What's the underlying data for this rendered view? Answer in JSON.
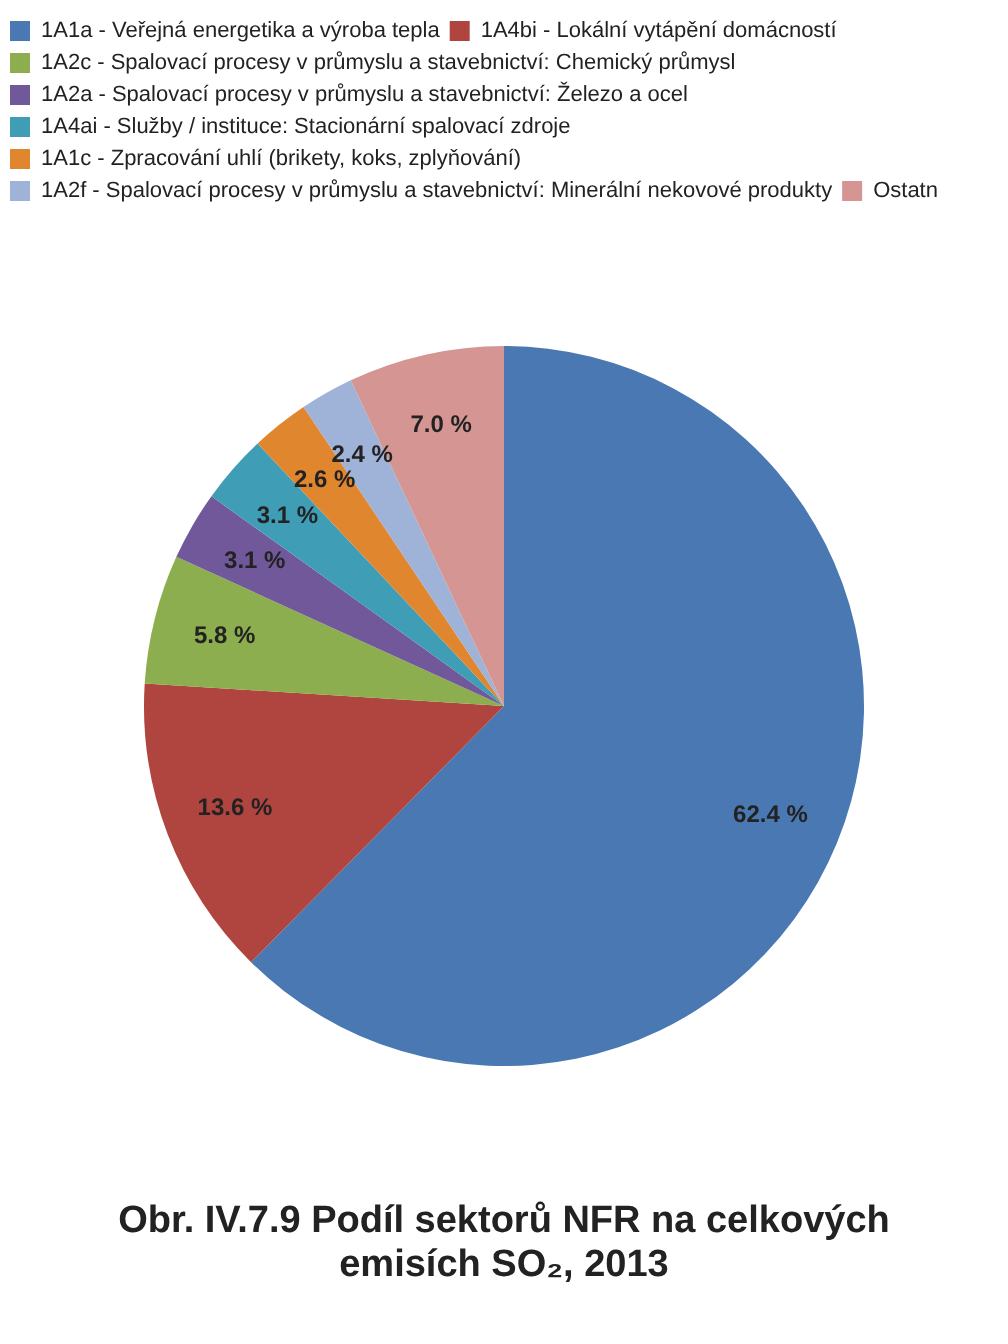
{
  "chart_data": {
    "type": "pie",
    "title": "Obr. IV.7.9  Podíl sektorů NFR na celkových emisích SO₂, 2013",
    "categories": [
      "1A1a - Veřejná energetika a výroba tepla",
      "1A4bi - Lokální vytápění domácností",
      "1A2c - Spalovací procesy v průmyslu a stavebnictví: Chemický průmysl",
      "1A2a - Spalovací procesy v průmyslu a stavebnictví: Železo a ocel",
      "1A4ai - Služby / instituce: Stacionární spalovací zdroje",
      "1A1c - Zpracování uhlí (brikety, koks, zplyňování)",
      "1A2f - Spalovací procesy v průmyslu a stavebnictví: Minerální nekovové produkty",
      "Ostatn"
    ],
    "values": [
      62.4,
      13.6,
      5.8,
      3.1,
      3.1,
      2.6,
      2.4,
      7.0
    ],
    "value_labels": [
      "62.4 %",
      "13.6 %",
      "5.8 %",
      "3.1 %",
      "3.1 %",
      "2.6 %",
      "2.4 %",
      "7.0 %"
    ],
    "colors": [
      "#4a78b2",
      "#b0443f",
      "#8cae4e",
      "#71589a",
      "#3f9db5",
      "#e0862f",
      "#9fb3d9",
      "#d49593"
    ],
    "legend": "top left"
  }
}
